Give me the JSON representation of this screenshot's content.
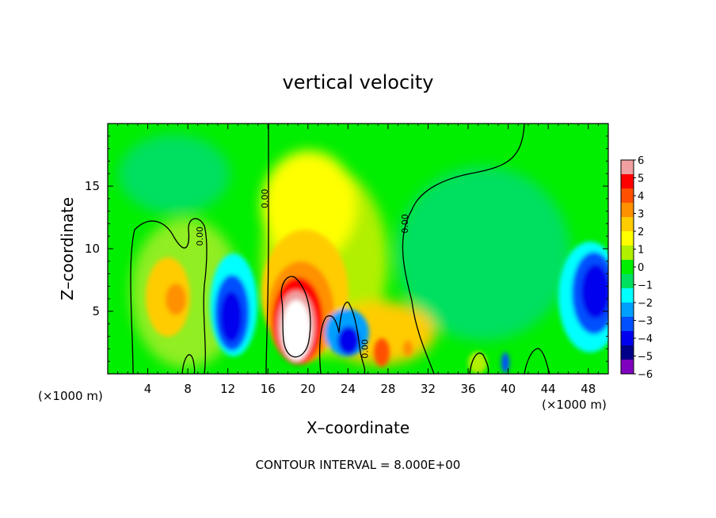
{
  "chart_data": {
    "type": "heatmap",
    "title": "vertical velocity",
    "xlabel": "X–coordinate",
    "ylabel": "Z–coordinate",
    "x_unit_left": "(×1000 m)",
    "x_unit_right": "(×1000 m)",
    "footer": "CONTOUR INTERVAL = 8.000E+00",
    "xlim": [
      0,
      50
    ],
    "ylim": [
      0,
      20
    ],
    "x_ticks": [
      "4",
      "8",
      "12",
      "16",
      "20",
      "24",
      "28",
      "32",
      "36",
      "40",
      "44",
      "48"
    ],
    "y_ticks": [
      "5",
      "10",
      "15"
    ],
    "colorbar": {
      "range": [
        -6,
        6
      ],
      "tick_labels": [
        "6",
        "5",
        "4",
        "3",
        "2",
        "1",
        "0",
        "−1",
        "−2",
        "−3",
        "−4",
        "−5",
        "−6"
      ],
      "colors": [
        "#f0a0a0",
        "#ff0000",
        "#ff5000",
        "#ff9000",
        "#ffcc00",
        "#ffff00",
        "#b0f000",
        "#00ee00",
        "#00e060",
        "#00ffff",
        "#00a0ff",
        "#0050ff",
        "#0000ee",
        "#000088",
        "#8000c0"
      ]
    },
    "background_value": 0.3,
    "features": [
      {
        "kind": "updraft-core",
        "x": 18.5,
        "z": 4.0,
        "peak": 7.0
      },
      {
        "kind": "updraft",
        "x": 20.0,
        "z": 8.5,
        "peak": 2.0
      },
      {
        "kind": "updraft",
        "x": 6.5,
        "z": 6.0,
        "peak": 3.5
      },
      {
        "kind": "updraft",
        "x": 28.0,
        "z": 3.0,
        "peak": 2.2
      },
      {
        "kind": "updraft",
        "x": 37.0,
        "z": 1.0,
        "peak": 1.8
      },
      {
        "kind": "downdraft",
        "x": 13.0,
        "z": 4.5,
        "peak": -5.2
      },
      {
        "kind": "downdraft",
        "x": 47.5,
        "z": 6.5,
        "peak": -4.8
      },
      {
        "kind": "downdraft",
        "x": 24.0,
        "z": 3.0,
        "peak": -3.5
      },
      {
        "kind": "downdraft",
        "x": 40.0,
        "z": 1.0,
        "peak": -3.0
      },
      {
        "kind": "weak-downdraft",
        "x": 38.0,
        "z": 10.0,
        "peak": -1.2
      },
      {
        "kind": "weak-downdraft",
        "x": 8.0,
        "z": 15.0,
        "peak": -0.8
      }
    ],
    "contour_label": "0.00",
    "contour_labels_at": [
      {
        "x": 16.0,
        "z": 14.0
      },
      {
        "x": 9.5,
        "z": 11.0
      },
      {
        "x": 30.0,
        "z": 12.0
      },
      {
        "x": 26.0,
        "z": 2.0
      }
    ]
  }
}
